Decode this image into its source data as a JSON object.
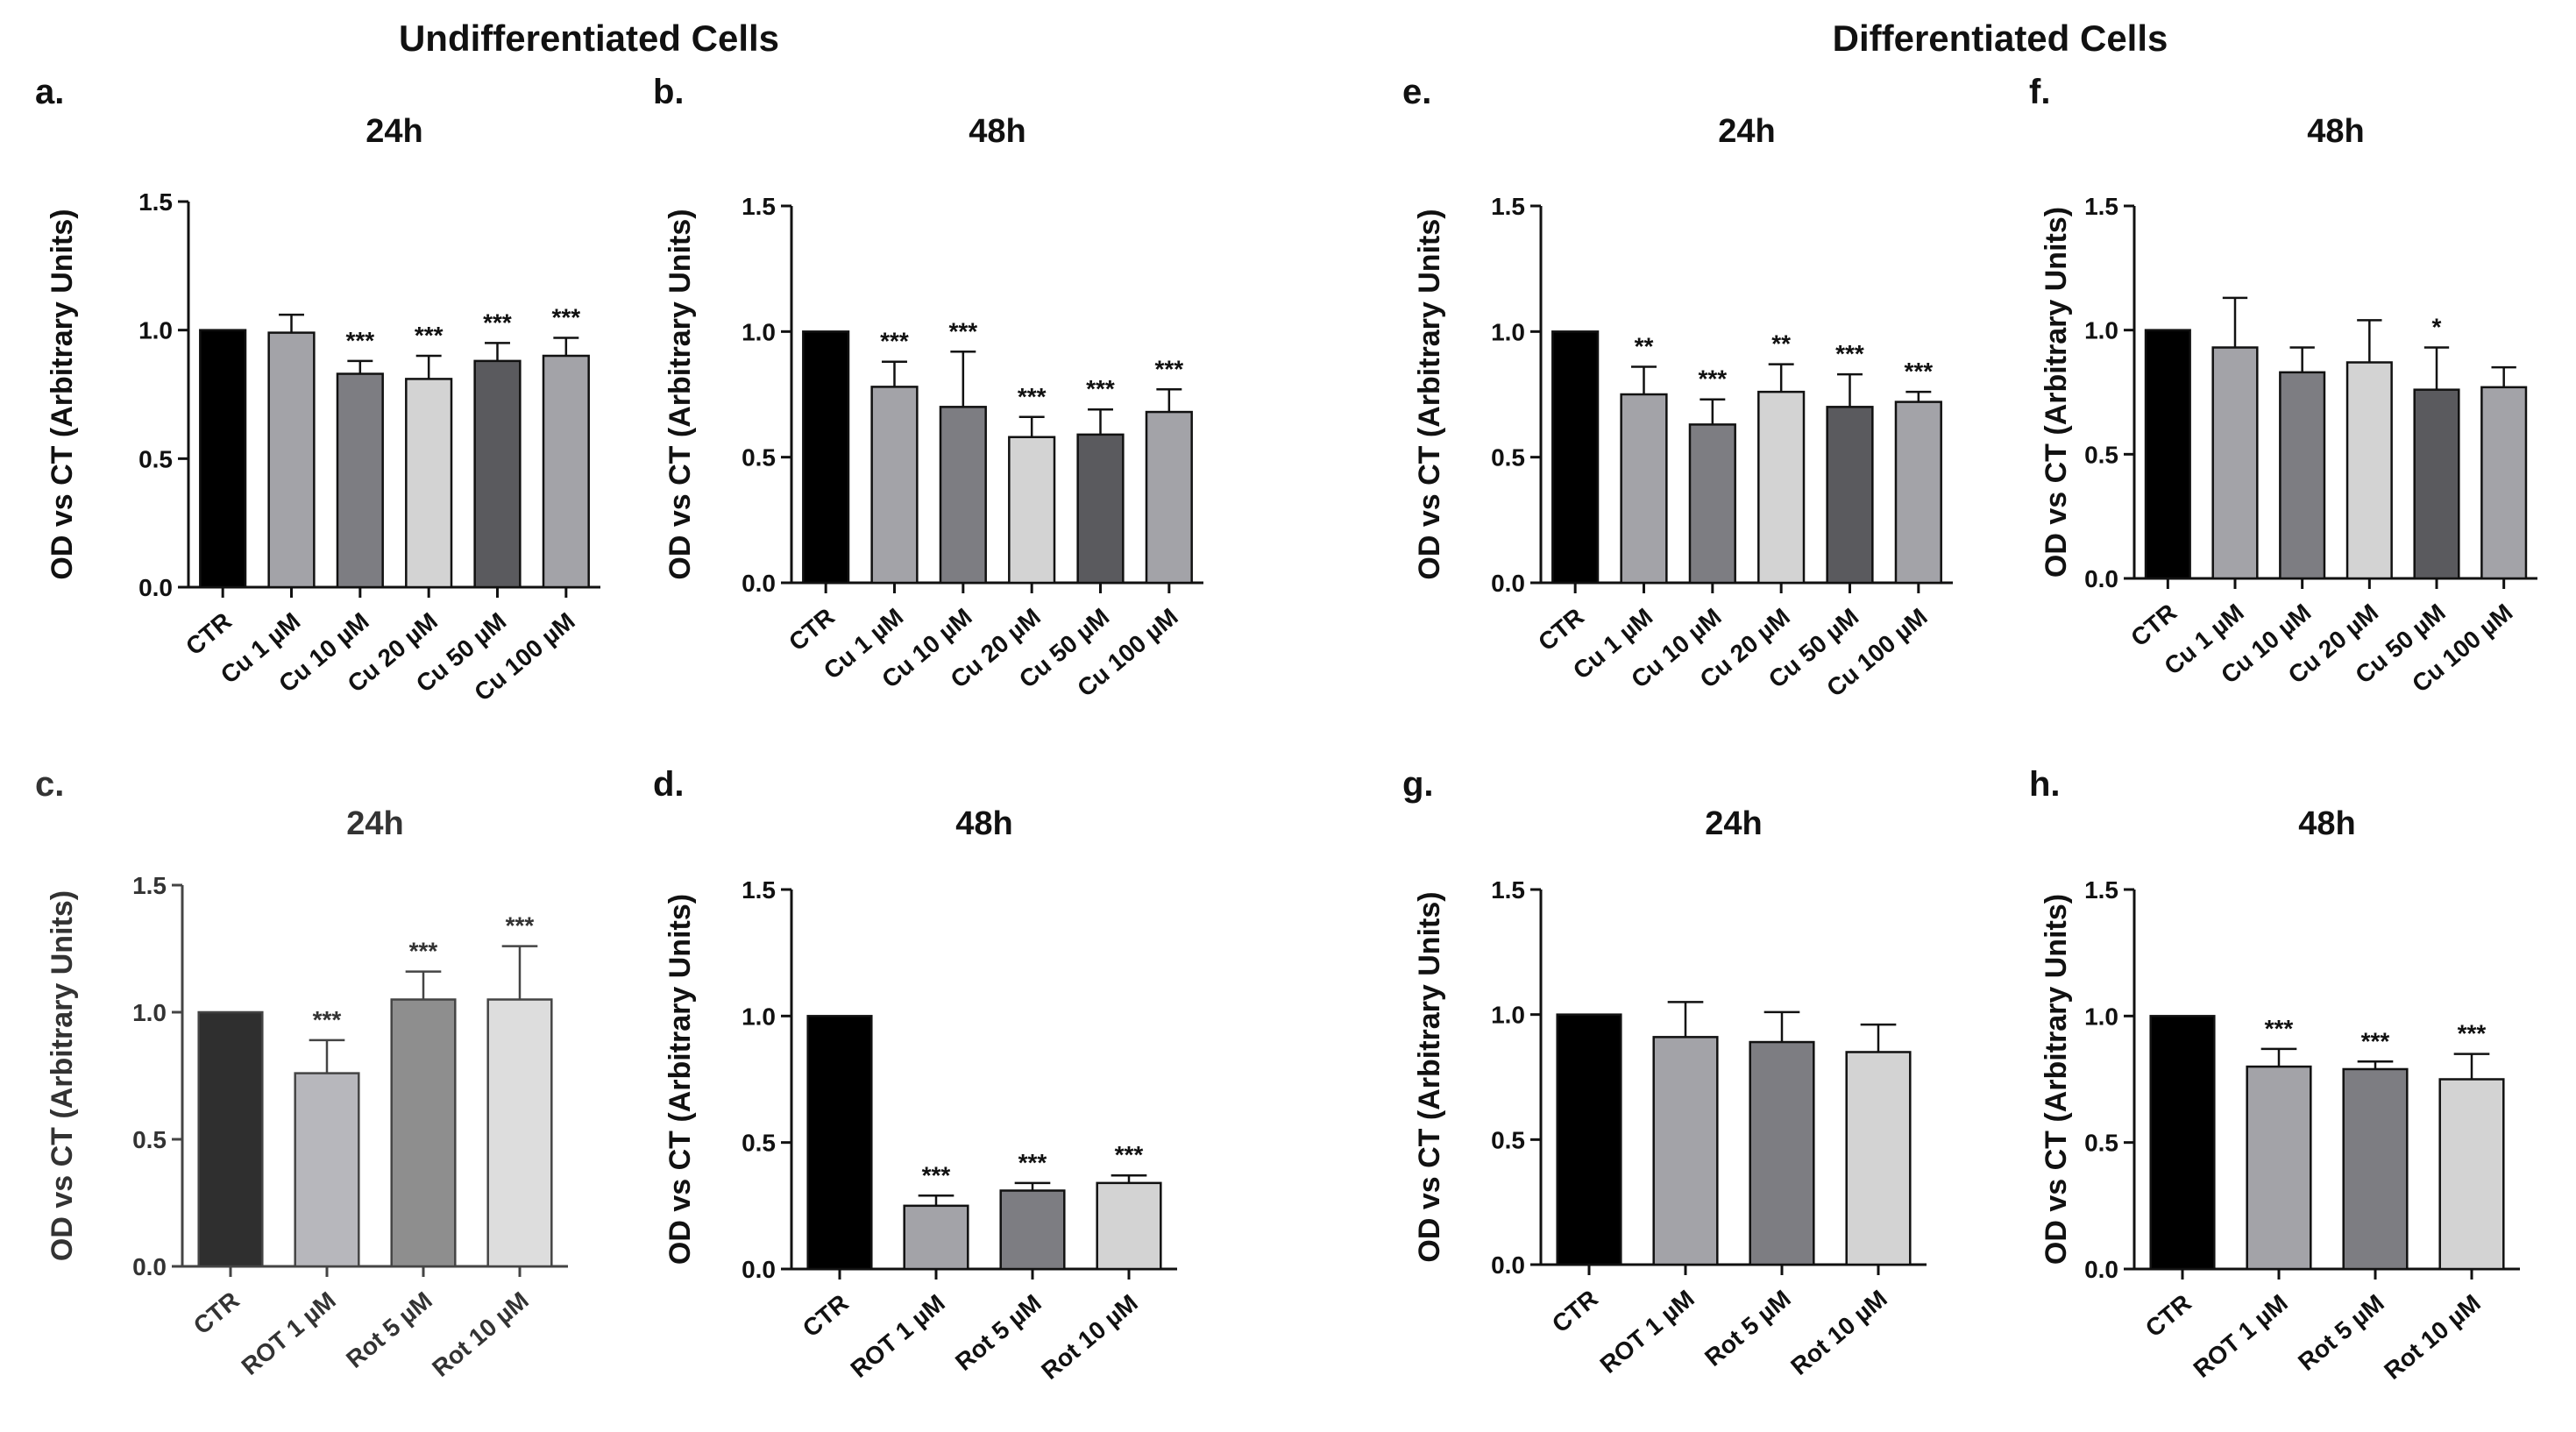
{
  "sections": {
    "left": "Undifferentiated Cells",
    "right": "Differentiated Cells"
  },
  "chart_data": [
    {
      "id": "a",
      "label": "a.",
      "type": "bar",
      "title": "24h",
      "ylabel": "OD vs CT (Arbitrary Units)",
      "xlabel": "",
      "ylim": [
        0,
        1.5
      ],
      "yticks": [
        "0.0",
        "0.5",
        "1.0",
        "1.5"
      ],
      "categories": [
        "CTR",
        "Cu 1 µM",
        "Cu 10 µM",
        "Cu 20 µM",
        "Cu 50 µM",
        "Cu 100 µM"
      ],
      "values": [
        1.0,
        0.99,
        0.83,
        0.81,
        0.88,
        0.9
      ],
      "errors": [
        0,
        0.07,
        0.05,
        0.09,
        0.07,
        0.07
      ],
      "significance": [
        "",
        "",
        "***",
        "***",
        "***",
        "***"
      ],
      "colors": [
        "#000000",
        "#a3a3a8",
        "#7d7d82",
        "#d3d3d3",
        "#5a5a5e",
        "#a3a3a8"
      ]
    },
    {
      "id": "b",
      "label": "b.",
      "type": "bar",
      "title": "48h",
      "ylabel": "OD vs CT (Arbitrary Units)",
      "xlabel": "",
      "ylim": [
        0,
        1.5
      ],
      "yticks": [
        "0.0",
        "0.5",
        "1.0",
        "1.5"
      ],
      "categories": [
        "CTR",
        "Cu 1 µM",
        "Cu 10 µM",
        "Cu 20 µM",
        "Cu 50 µM",
        "Cu 100 µM"
      ],
      "values": [
        1.0,
        0.78,
        0.7,
        0.58,
        0.59,
        0.68
      ],
      "errors": [
        0,
        0.1,
        0.22,
        0.08,
        0.1,
        0.09
      ],
      "significance": [
        "",
        "***",
        "***",
        "***",
        "***",
        "***"
      ],
      "colors": [
        "#000000",
        "#a3a3a8",
        "#7d7d82",
        "#d3d3d3",
        "#5a5a5e",
        "#a3a3a8"
      ]
    },
    {
      "id": "c",
      "label": "c.",
      "type": "bar",
      "title": "24h",
      "ylabel": "OD vs CT (Arbitrary Units)",
      "xlabel": "",
      "ylim": [
        0,
        1.5
      ],
      "yticks": [
        "0.0",
        "0.5",
        "1.0",
        "1.5"
      ],
      "categories": [
        "CTR",
        "ROT 1 µM",
        "Rot 5 µM",
        "Rot 10 µM"
      ],
      "values": [
        1.0,
        0.76,
        1.05,
        1.05
      ],
      "errors": [
        0,
        0.13,
        0.11,
        0.21
      ],
      "significance": [
        "",
        "***",
        "***",
        "***"
      ],
      "colors": [
        "#2f2f2f",
        "#b7b7bc",
        "#8e8e8e",
        "#dddddd"
      ],
      "muted": true
    },
    {
      "id": "d",
      "label": "d.",
      "type": "bar",
      "title": "48h",
      "ylabel": "OD vs CT (Arbitrary Units)",
      "xlabel": "",
      "ylim": [
        0,
        1.5
      ],
      "yticks": [
        "0.0",
        "0.5",
        "1.0",
        "1.5"
      ],
      "categories": [
        "CTR",
        "ROT 1 µM",
        "Rot 5 µM",
        "Rot 10 µM"
      ],
      "values": [
        1.0,
        0.25,
        0.31,
        0.34
      ],
      "errors": [
        0,
        0.04,
        0.03,
        0.03
      ],
      "significance": [
        "",
        "***",
        "***",
        "***"
      ],
      "colors": [
        "#000000",
        "#a3a3a8",
        "#7d7d82",
        "#d3d3d3"
      ]
    },
    {
      "id": "e",
      "label": "e.",
      "type": "bar",
      "title": "24h",
      "ylabel": "OD vs CT (Arbitrary Units)",
      "xlabel": "",
      "ylim": [
        0,
        1.5
      ],
      "yticks": [
        "0.0",
        "0.5",
        "1.0",
        "1.5"
      ],
      "categories": [
        "CTR",
        "Cu 1 µM",
        "Cu 10 µM",
        "Cu 20 µM",
        "Cu 50 µM",
        "Cu 100 µM"
      ],
      "values": [
        1.0,
        0.75,
        0.63,
        0.76,
        0.7,
        0.72
      ],
      "errors": [
        0,
        0.11,
        0.1,
        0.11,
        0.13,
        0.04
      ],
      "significance": [
        "",
        "**",
        "***",
        "**",
        "***",
        "***"
      ],
      "colors": [
        "#000000",
        "#a3a3a8",
        "#7d7d82",
        "#d3d3d3",
        "#5a5a5e",
        "#a3a3a8"
      ]
    },
    {
      "id": "f",
      "label": "f.",
      "type": "bar",
      "title": "48h",
      "ylabel": "OD vs CT (Arbitrary Units)",
      "xlabel": "",
      "ylim": [
        0,
        1.5
      ],
      "yticks": [
        "0.0",
        "0.5",
        "1.0",
        "1.5"
      ],
      "categories": [
        "CTR",
        "Cu 1 µM",
        "Cu 10 µM",
        "Cu 20 µM",
        "Cu 50 µM",
        "Cu 100 µM"
      ],
      "values": [
        1.0,
        0.93,
        0.83,
        0.87,
        0.76,
        0.77
      ],
      "errors": [
        0,
        0.2,
        0.1,
        0.17,
        0.17,
        0.08
      ],
      "significance": [
        "",
        "",
        "",
        "",
        "*",
        ""
      ],
      "colors": [
        "#000000",
        "#a3a3a8",
        "#7d7d82",
        "#d3d3d3",
        "#5a5a5e",
        "#a3a3a8"
      ]
    },
    {
      "id": "g",
      "label": "g.",
      "type": "bar",
      "title": "24h",
      "ylabel": "OD vs CT (Arbitrary Units)",
      "xlabel": "",
      "ylim": [
        0,
        1.5
      ],
      "yticks": [
        "0.0",
        "0.5",
        "1.0",
        "1.5"
      ],
      "categories": [
        "CTR",
        "ROT 1 µM",
        "Rot 5 µM",
        "Rot 10 µM"
      ],
      "values": [
        1.0,
        0.91,
        0.89,
        0.85
      ],
      "errors": [
        0,
        0.14,
        0.12,
        0.11
      ],
      "significance": [
        "",
        "",
        "",
        ""
      ],
      "colors": [
        "#000000",
        "#a3a3a8",
        "#7d7d82",
        "#d3d3d3"
      ]
    },
    {
      "id": "h",
      "label": "h.",
      "type": "bar",
      "title": "48h",
      "ylabel": "OD vs CT (Arbitrary Units)",
      "xlabel": "",
      "ylim": [
        0,
        1.5
      ],
      "yticks": [
        "0.0",
        "0.5",
        "1.0",
        "1.5"
      ],
      "categories": [
        "CTR",
        "ROT 1 µM",
        "Rot 5 µM",
        "Rot 10 µM"
      ],
      "values": [
        1.0,
        0.8,
        0.79,
        0.75
      ],
      "errors": [
        0,
        0.07,
        0.03,
        0.1
      ],
      "significance": [
        "",
        "***",
        "***",
        "***"
      ],
      "colors": [
        "#000000",
        "#a3a3a8",
        "#7d7d82",
        "#d3d3d3"
      ]
    }
  ]
}
